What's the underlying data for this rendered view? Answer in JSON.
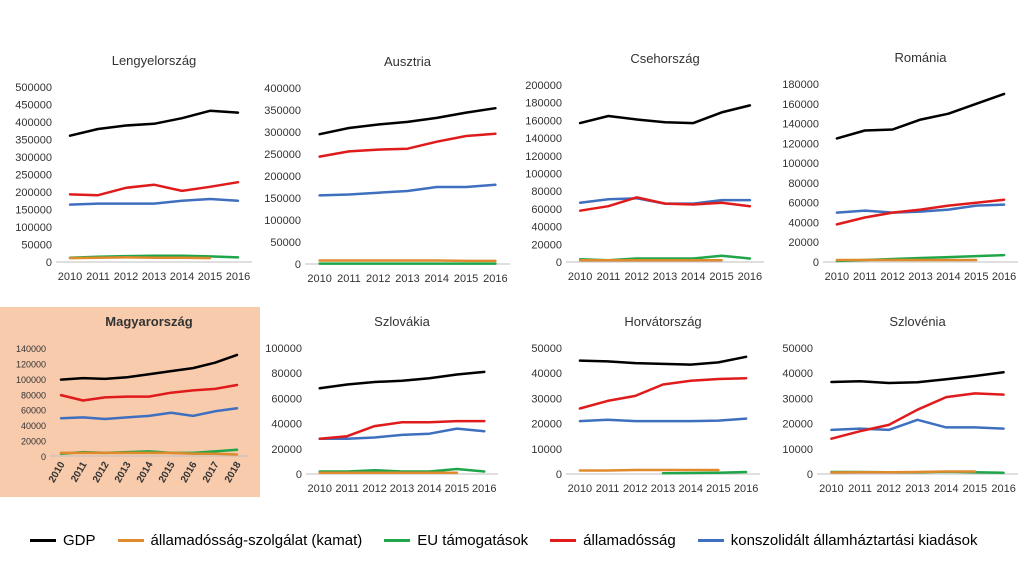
{
  "legend": [
    {
      "name": "GDP",
      "color": "#000000"
    },
    {
      "name": "államadósság-szolgálat (kamat)",
      "color": "#E08A2E"
    },
    {
      "name": "EU támogatások",
      "color": "#1FA64A"
    },
    {
      "name": "államadósság",
      "color": "#E01B1B"
    },
    {
      "name": "konszolidált államháztartási kiadások",
      "color": "#3F6FBF"
    }
  ],
  "highlight_color": "#F8CBAD",
  "chart_data": [
    {
      "type": "line",
      "title": "Lengyelország",
      "highlight": false,
      "x": [
        "2010",
        "2011",
        "2012",
        "2013",
        "2014",
        "2015",
        "2016"
      ],
      "ylim": [
        0,
        500000
      ],
      "yticks": [
        0,
        50000,
        100000,
        150000,
        200000,
        250000,
        300000,
        350000,
        400000,
        450000,
        500000
      ],
      "series": [
        {
          "name": "GDP",
          "values": [
            361000,
            380000,
            390000,
            395000,
            411000,
            432000,
            427000
          ]
        },
        {
          "name": "államadósság-szolgálat (kamat)",
          "values": [
            11000,
            12000,
            13000,
            12000,
            12000,
            11000,
            null
          ]
        },
        {
          "name": "EU támogatások",
          "values": [
            12000,
            15000,
            17000,
            18000,
            18000,
            16000,
            13000
          ]
        },
        {
          "name": "államadósság",
          "values": [
            193000,
            191000,
            212000,
            221000,
            203000,
            215000,
            228000
          ]
        },
        {
          "name": "konszolidált államháztartási kiadások",
          "values": [
            164000,
            167000,
            167000,
            167000,
            175000,
            180000,
            175000
          ]
        }
      ]
    },
    {
      "type": "line",
      "title": "Ausztria",
      "highlight": false,
      "x": [
        "2010",
        "2011",
        "2012",
        "2013",
        "2014",
        "2015",
        "2016"
      ],
      "ylim": [
        0,
        400000
      ],
      "yticks": [
        0,
        50000,
        100000,
        150000,
        200000,
        250000,
        300000,
        350000,
        400000
      ],
      "series": [
        {
          "name": "GDP",
          "values": [
            295000,
            309000,
            317000,
            323000,
            332000,
            344000,
            354000
          ]
        },
        {
          "name": "államadósság-szolgálat (kamat)",
          "values": [
            8000,
            8000,
            8000,
            8000,
            8000,
            7000,
            7000
          ]
        },
        {
          "name": "EU támogatások",
          "values": [
            1000,
            1000,
            1000,
            1000,
            1000,
            1000,
            1000
          ]
        },
        {
          "name": "államadósság",
          "values": [
            244000,
            256000,
            260000,
            262000,
            278000,
            291000,
            296000
          ]
        },
        {
          "name": "konszolidált államháztartási kiadások",
          "values": [
            156000,
            158000,
            162000,
            166000,
            175000,
            175000,
            180000
          ]
        }
      ]
    },
    {
      "type": "line",
      "title": "Csehország",
      "highlight": false,
      "x": [
        "2010",
        "2011",
        "2012",
        "2013",
        "2014",
        "2015",
        "2016"
      ],
      "ylim": [
        0,
        200000
      ],
      "yticks": [
        0,
        20000,
        40000,
        60000,
        80000,
        100000,
        120000,
        140000,
        160000,
        180000,
        200000
      ],
      "series": [
        {
          "name": "GDP",
          "values": [
            157000,
            165000,
            161000,
            158000,
            157000,
            169000,
            177000
          ]
        },
        {
          "name": "államadósság-szolgálat (kamat)",
          "values": [
            2000,
            2000,
            2000,
            2000,
            2000,
            2000,
            null
          ]
        },
        {
          "name": "EU támogatások",
          "values": [
            3000,
            2000,
            4000,
            4000,
            4000,
            7000,
            4000
          ]
        },
        {
          "name": "államadósság",
          "values": [
            58000,
            63000,
            73000,
            66000,
            65000,
            67000,
            63000
          ]
        },
        {
          "name": "konszolidált államháztartási kiadások",
          "values": [
            67000,
            71000,
            72000,
            66000,
            66000,
            70000,
            70000
          ]
        }
      ]
    },
    {
      "type": "line",
      "title": "Románia",
      "highlight": false,
      "x": [
        "2010",
        "2011",
        "2012",
        "2013",
        "2014",
        "2015",
        "2016"
      ],
      "ylim": [
        0,
        180000
      ],
      "yticks": [
        0,
        20000,
        40000,
        60000,
        80000,
        100000,
        120000,
        140000,
        160000,
        180000
      ],
      "series": [
        {
          "name": "GDP",
          "values": [
            125000,
            133000,
            134000,
            144000,
            150000,
            160000,
            170000
          ]
        },
        {
          "name": "államadósság-szolgálat (kamat)",
          "values": [
            2000,
            2000,
            2000,
            2000,
            2000,
            2000,
            null
          ]
        },
        {
          "name": "EU támogatások",
          "values": [
            1000,
            2000,
            3000,
            4000,
            5000,
            6000,
            7000
          ]
        },
        {
          "name": "államadósság",
          "values": [
            38000,
            45000,
            50000,
            53000,
            57000,
            60000,
            63000
          ]
        },
        {
          "name": "konszolidált államháztartási kiadások",
          "values": [
            50000,
            52000,
            50000,
            51000,
            53000,
            57000,
            58000
          ]
        }
      ]
    },
    {
      "type": "line",
      "title": "Magyarország",
      "highlight": true,
      "x": [
        "2010",
        "2011",
        "2012",
        "2013",
        "2014",
        "2015",
        "2016",
        "2017",
        "2018"
      ],
      "xrotate": true,
      "ylim": [
        0,
        140000
      ],
      "yticks": [
        0,
        20000,
        40000,
        60000,
        80000,
        100000,
        120000,
        140000
      ],
      "series": [
        {
          "name": "GDP",
          "values": [
            99000,
            101000,
            100000,
            102000,
            106000,
            110000,
            114000,
            121000,
            131000
          ]
        },
        {
          "name": "államadósság-szolgálat (kamat)",
          "values": [
            4000,
            4000,
            4000,
            4000,
            4000,
            4000,
            3000,
            3000,
            2000
          ]
        },
        {
          "name": "EU támogatások",
          "values": [
            3000,
            5000,
            4000,
            5000,
            6000,
            4000,
            4000,
            6000,
            8000
          ]
        },
        {
          "name": "államadósság",
          "values": [
            79000,
            72000,
            76000,
            77000,
            77000,
            82000,
            85000,
            87000,
            92000
          ]
        },
        {
          "name": "konszolidált államháztartási kiadások",
          "values": [
            49000,
            50000,
            48000,
            50000,
            52000,
            56000,
            52000,
            58000,
            62000
          ]
        }
      ]
    },
    {
      "type": "line",
      "title": "Szlovákia",
      "highlight": false,
      "x": [
        "2010",
        "2011",
        "2012",
        "2013",
        "2014",
        "2015",
        "2016"
      ],
      "ylim": [
        0,
        100000
      ],
      "yticks": [
        0,
        20000,
        40000,
        60000,
        80000,
        100000
      ],
      "series": [
        {
          "name": "GDP",
          "values": [
            68000,
            71000,
            73000,
            74000,
            76000,
            79000,
            81000
          ]
        },
        {
          "name": "államadósság-szolgálat (kamat)",
          "values": [
            1000,
            1000,
            1000,
            1000,
            1000,
            1000,
            null
          ]
        },
        {
          "name": "EU támogatások",
          "values": [
            2000,
            2000,
            3000,
            2000,
            2000,
            4000,
            2000
          ]
        },
        {
          "name": "államadósság",
          "values": [
            28000,
            30000,
            38000,
            41000,
            41000,
            42000,
            42000
          ]
        },
        {
          "name": "konszolidált államháztartási kiadások",
          "values": [
            28000,
            28000,
            29000,
            31000,
            32000,
            36000,
            34000
          ]
        }
      ]
    },
    {
      "type": "line",
      "title": "Horvátország",
      "highlight": false,
      "x": [
        "2010",
        "2011",
        "2012",
        "2013",
        "2014",
        "2015",
        "2016"
      ],
      "ylim": [
        0,
        50000
      ],
      "yticks": [
        0,
        10000,
        20000,
        30000,
        40000,
        50000
      ],
      "series": [
        {
          "name": "GDP",
          "values": [
            45000,
            44700,
            44000,
            43700,
            43400,
            44300,
            46500
          ]
        },
        {
          "name": "államadósság-szolgálat (kamat)",
          "values": [
            1400,
            1400,
            1600,
            1600,
            1600,
            1600,
            null
          ]
        },
        {
          "name": "EU támogatások",
          "values": [
            null,
            null,
            null,
            300,
            400,
            500,
            800
          ]
        },
        {
          "name": "államadósság",
          "values": [
            26000,
            29000,
            31000,
            35500,
            37000,
            37700,
            38000
          ]
        },
        {
          "name": "konszolidált államháztartási kiadások",
          "values": [
            21000,
            21500,
            21000,
            21000,
            21000,
            21200,
            22000
          ]
        }
      ]
    },
    {
      "type": "line",
      "title": "Szlovénia",
      "highlight": false,
      "x": [
        "2010",
        "2011",
        "2012",
        "2013",
        "2014",
        "2015",
        "2016"
      ],
      "ylim": [
        0,
        50000
      ],
      "yticks": [
        0,
        10000,
        20000,
        30000,
        40000,
        50000
      ],
      "series": [
        {
          "name": "GDP",
          "values": [
            36500,
            36800,
            36100,
            36400,
            37600,
            38900,
            40400
          ]
        },
        {
          "name": "államadósság-szolgálat (kamat)",
          "values": [
            600,
            700,
            700,
            800,
            1000,
            1000,
            null
          ]
        },
        {
          "name": "EU támogatások",
          "values": [
            800,
            800,
            700,
            700,
            900,
            700,
            500
          ]
        },
        {
          "name": "államadósság",
          "values": [
            14000,
            17000,
            19500,
            25500,
            30500,
            32000,
            31500
          ]
        },
        {
          "name": "konszolidált államháztartási kiadások",
          "values": [
            17500,
            18000,
            17500,
            21500,
            18500,
            18500,
            18000
          ]
        }
      ]
    }
  ]
}
